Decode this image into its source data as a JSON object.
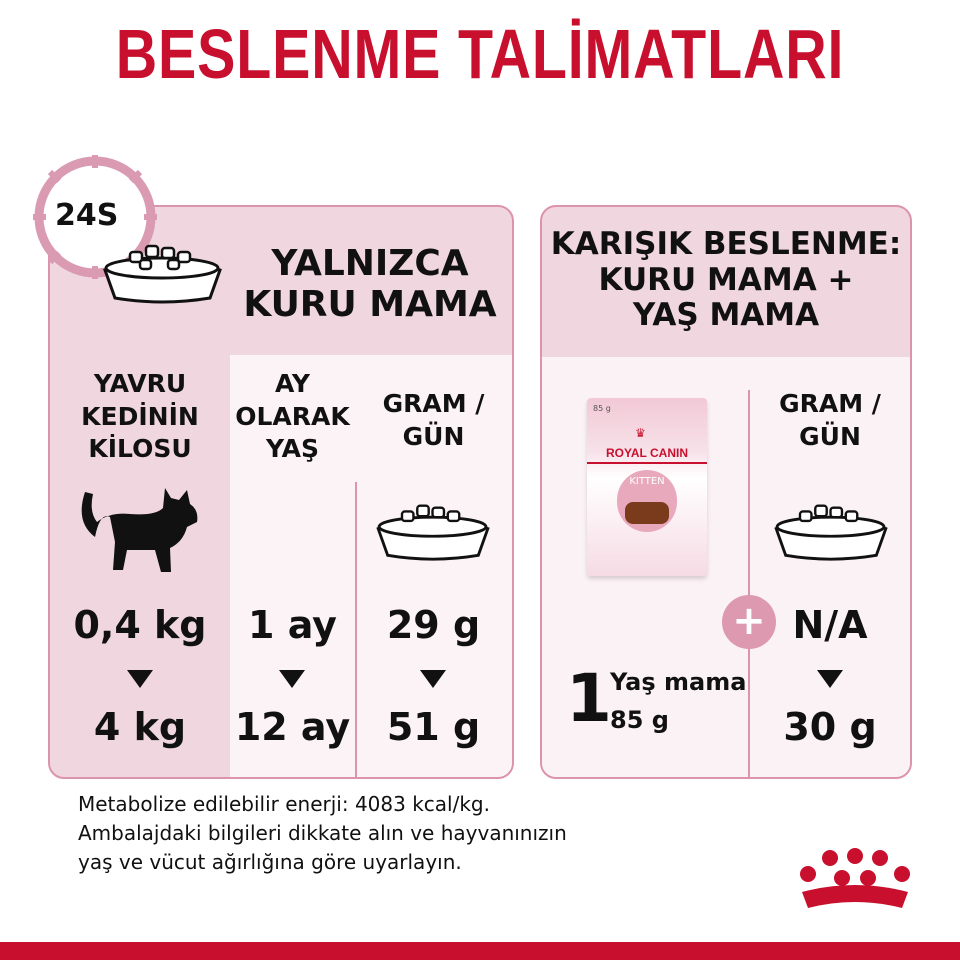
{
  "title": "BESLENME TALİMATLARI",
  "dry_only": {
    "clock_label": "24S",
    "heading": [
      "YALNIZCA",
      "KURU MAMA"
    ],
    "columns": [
      {
        "header": [
          "YAVRU",
          "KEDİNİN",
          "KİLOSU"
        ],
        "from": "0,4 kg",
        "to": "4 kg",
        "icon": "kitten-silhouette-icon"
      },
      {
        "header": [
          "AY",
          "OLARAK",
          "YAŞ"
        ],
        "from": "1 ay",
        "to": "12 ay"
      },
      {
        "header": [
          "GRAM /",
          "GÜN"
        ],
        "from": "29 g",
        "to": "51 g",
        "icon": "food-bowl-icon"
      }
    ]
  },
  "mixed": {
    "heading": [
      "KARIŞIK BESLENME:",
      "KURU MAMA +",
      "YAŞ MAMA"
    ],
    "pouch": {
      "weight": "85 g",
      "brand": "ROYAL CANIN",
      "product": "KITTEN"
    },
    "wet_count": "1",
    "wet_label": "Yaş mama",
    "wet_weight": "85 g",
    "dry_header": [
      "GRAM /",
      "GÜN"
    ],
    "dry_from": "N/A",
    "dry_to": "30 g"
  },
  "footer": [
    "Metabolize edilebilir enerji: 4083 kcal/kg.",
    "Ambalajdaki bilgileri dikkate alın ve hayvanınızın",
    "yaş ve vücut ağırlığına göre uyarlayın."
  ],
  "colors": {
    "brand_red": "#c8102e",
    "panel_pink": "#f0d6df",
    "border_pink": "#dc93ad",
    "light_pink": "#fbf2f5"
  }
}
